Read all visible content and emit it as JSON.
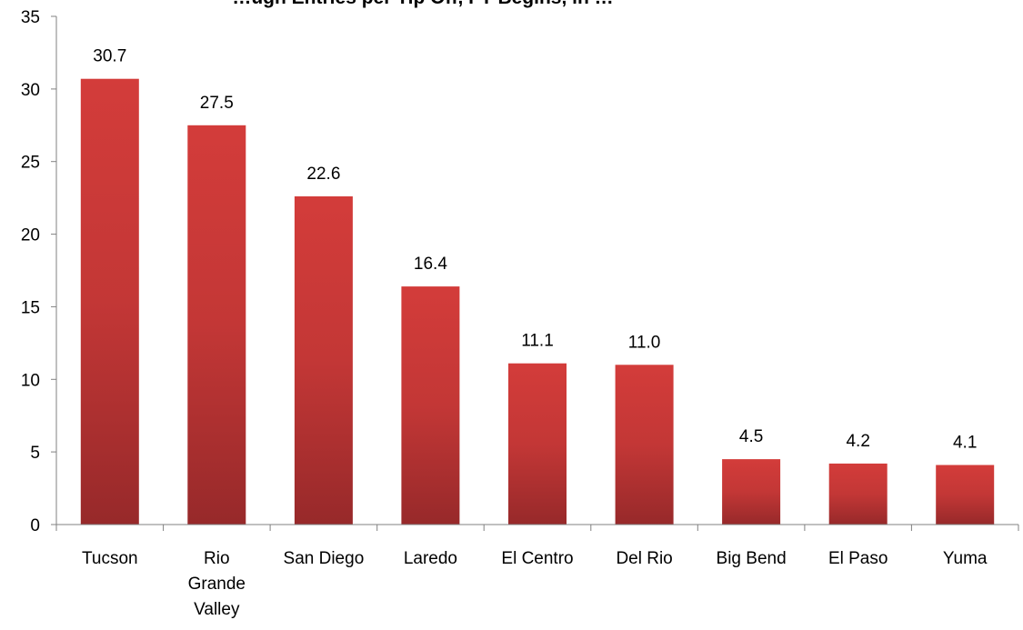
{
  "chart_data": {
    "type": "bar",
    "title": "…ugh Entries per Tip Off, FY Begins, in …",
    "categories": [
      "Tucson",
      "Rio Grande Valley",
      "San Diego",
      "Laredo",
      "El Centro",
      "Del Rio",
      "Big Bend",
      "El Paso",
      "Yuma"
    ],
    "category_lines": [
      [
        "Tucson"
      ],
      [
        "Rio",
        "Grande",
        "Valley"
      ],
      [
        "San Diego"
      ],
      [
        "Laredo"
      ],
      [
        "El Centro"
      ],
      [
        "Del Rio"
      ],
      [
        "Big Bend"
      ],
      [
        "El Paso"
      ],
      [
        "Yuma"
      ]
    ],
    "values": [
      30.7,
      27.5,
      22.6,
      16.4,
      11.1,
      11.0,
      4.5,
      4.2,
      4.1
    ],
    "data_labels": [
      "30.7",
      "27.5",
      "22.6",
      "16.4",
      "11.1",
      "11.0",
      "4.5",
      "4.2",
      "4.1"
    ],
    "ylim": [
      0,
      35
    ],
    "yticks": [
      0,
      5,
      10,
      15,
      20,
      25,
      30,
      35
    ],
    "xlabel": "",
    "ylabel": "",
    "grid": false,
    "legend": "none",
    "colors": {
      "bar_top": "#d33c3a",
      "bar_bottom": "#97292a",
      "axis": "#808080"
    }
  }
}
